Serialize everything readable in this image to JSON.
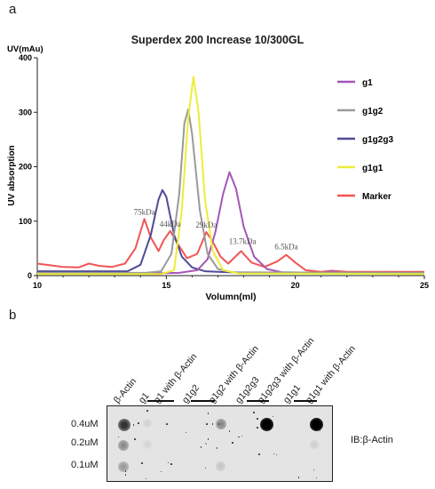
{
  "panels": {
    "a": "a",
    "b": "b"
  },
  "chart_data": {
    "type": "line",
    "title": "Superdex 200 Increase 10/300GL",
    "xlabel": "Volumn(ml)",
    "ylabel": "UV absorption",
    "y_unit_label": "UV(mAu)",
    "xlim": [
      10,
      25
    ],
    "ylim": [
      0,
      400
    ],
    "x_ticks": [
      10,
      15,
      20,
      25
    ],
    "y_ticks": [
      0,
      100,
      200,
      300,
      400
    ],
    "grid": false,
    "legend_position": "right",
    "series": [
      {
        "name": "g1",
        "color": "#a456b7",
        "points": [
          [
            10,
            4
          ],
          [
            14,
            4
          ],
          [
            15.5,
            5
          ],
          [
            16.2,
            10
          ],
          [
            16.6,
            30
          ],
          [
            16.9,
            80
          ],
          [
            17.2,
            150
          ],
          [
            17.45,
            190
          ],
          [
            17.7,
            160
          ],
          [
            18.0,
            90
          ],
          [
            18.4,
            35
          ],
          [
            18.9,
            12
          ],
          [
            19.5,
            6
          ],
          [
            21.1,
            5
          ],
          [
            21.4,
            8
          ],
          [
            21.8,
            5
          ],
          [
            25,
            4
          ]
        ]
      },
      {
        "name": "g1g2",
        "color": "#9a9a9a",
        "points": [
          [
            10,
            5
          ],
          [
            14.2,
            5
          ],
          [
            14.8,
            8
          ],
          [
            15.2,
            40
          ],
          [
            15.5,
            150
          ],
          [
            15.7,
            280
          ],
          [
            15.85,
            305
          ],
          [
            16.0,
            260
          ],
          [
            16.3,
            120
          ],
          [
            16.6,
            40
          ],
          [
            17.0,
            12
          ],
          [
            17.6,
            6
          ],
          [
            25,
            5
          ]
        ]
      },
      {
        "name": "g1g2g3",
        "color": "#4f4a95",
        "points": [
          [
            10,
            8
          ],
          [
            13.5,
            8
          ],
          [
            14.0,
            20
          ],
          [
            14.4,
            75
          ],
          [
            14.7,
            140
          ],
          [
            14.85,
            157
          ],
          [
            15.0,
            145
          ],
          [
            15.3,
            75
          ],
          [
            15.6,
            35
          ],
          [
            16.0,
            15
          ],
          [
            16.5,
            8
          ],
          [
            18,
            5
          ],
          [
            25,
            5
          ]
        ]
      },
      {
        "name": "g1g1",
        "color": "#eded3a",
        "points": [
          [
            10,
            3
          ],
          [
            14.8,
            3
          ],
          [
            15.3,
            10
          ],
          [
            15.6,
            120
          ],
          [
            15.85,
            290
          ],
          [
            16.05,
            365
          ],
          [
            16.25,
            300
          ],
          [
            16.5,
            140
          ],
          [
            16.8,
            45
          ],
          [
            17.2,
            10
          ],
          [
            17.8,
            4
          ],
          [
            25,
            3
          ]
        ]
      },
      {
        "name": "Marker",
        "color": "#f25555",
        "points": [
          [
            10,
            22
          ],
          [
            11,
            16
          ],
          [
            11.6,
            15
          ],
          [
            12.0,
            22
          ],
          [
            12.4,
            18
          ],
          [
            12.9,
            16
          ],
          [
            13.4,
            22
          ],
          [
            13.8,
            50
          ],
          [
            14.15,
            104
          ],
          [
            14.4,
            70
          ],
          [
            14.7,
            45
          ],
          [
            14.9,
            65
          ],
          [
            15.15,
            82
          ],
          [
            15.45,
            58
          ],
          [
            15.8,
            32
          ],
          [
            16.2,
            40
          ],
          [
            16.55,
            80
          ],
          [
            16.8,
            62
          ],
          [
            17.1,
            35
          ],
          [
            17.4,
            22
          ],
          [
            17.9,
            45
          ],
          [
            18.3,
            24
          ],
          [
            18.8,
            16
          ],
          [
            19.3,
            26
          ],
          [
            19.65,
            38
          ],
          [
            20.0,
            24
          ],
          [
            20.4,
            10
          ],
          [
            21.0,
            7
          ],
          [
            21.4,
            9
          ],
          [
            22,
            7
          ],
          [
            25,
            7
          ]
        ]
      }
    ],
    "annotations": [
      {
        "text": "75kDa",
        "x": 14.15,
        "y": 104
      },
      {
        "text": "44kDa",
        "x": 15.15,
        "y": 82
      },
      {
        "text": "29kDa",
        "x": 16.55,
        "y": 80
      },
      {
        "text": "13.7kDa",
        "x": 17.95,
        "y": 50
      },
      {
        "text": "6.5kDa",
        "x": 19.65,
        "y": 40
      }
    ]
  },
  "blot": {
    "lanes": [
      "β-Actin",
      "g1",
      "g1 with β-Actin",
      "g1g2",
      "g1g2 with β-Actin",
      "g1g2g3",
      "g1g2g3 with β-Actin",
      "g1g1",
      "g1g1 with β-Actin"
    ],
    "concentrations": [
      "0.4uM",
      "0.2uM",
      "0.1uM"
    ],
    "detection_label": "IB:β-Actin"
  }
}
